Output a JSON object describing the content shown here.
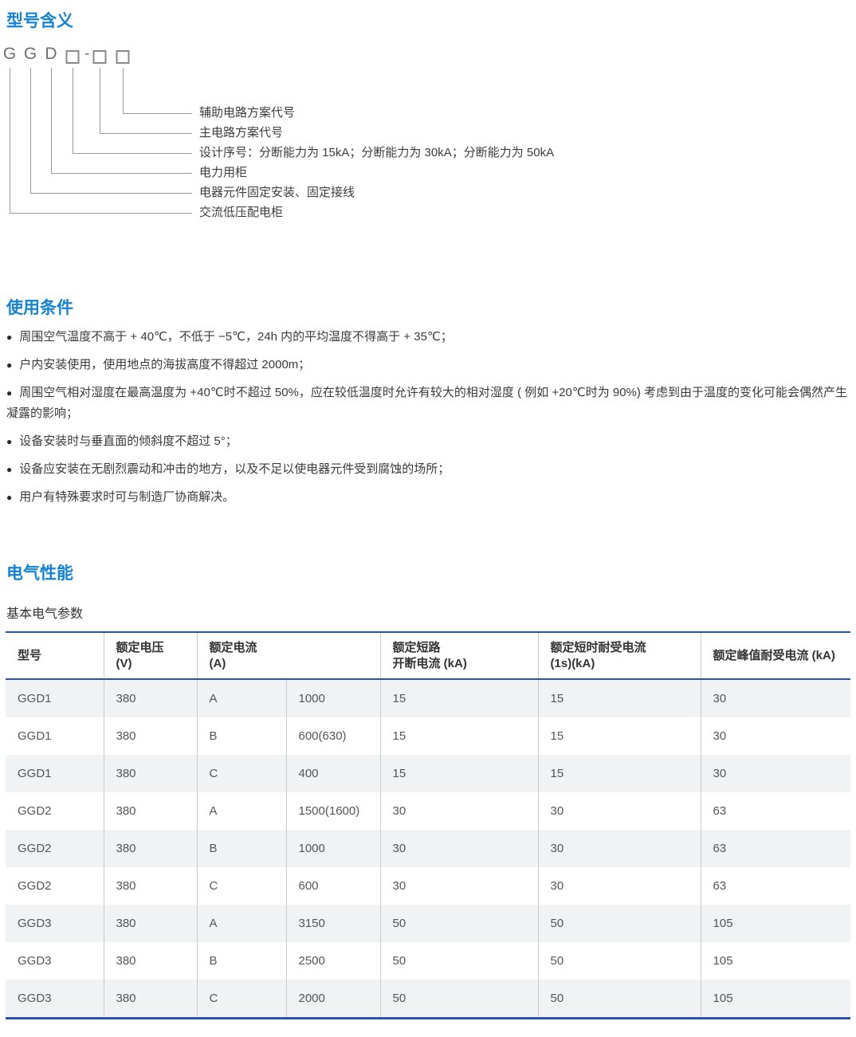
{
  "colors": {
    "heading_blue": "#1483d5",
    "table_border_blue": "#2b55a7",
    "stripe_gray": "#f1f2f4",
    "line_gray": "#9a9a9a"
  },
  "section_model": {
    "title": "型号含义",
    "glyphs": [
      "G",
      "G",
      "D",
      "□",
      "-",
      "□",
      "□"
    ],
    "labels": [
      "辅助电路方案代号",
      "主电路方案代号",
      "设计序号：分断能力为 15kA；分断能力为 30kA；分断能力为 50kA",
      "电力用柜",
      "电器元件固定安装、固定接线",
      "交流低压配电柜"
    ]
  },
  "section_conditions": {
    "title": "使用条件",
    "bullet": "●",
    "items": [
      "周围空气温度不高于 + 40℃，不低于 −5℃，24h 内的平均温度不得高于 + 35℃；",
      "户内安装使用，使用地点的海拔高度不得超过 2000m；",
      "周围空气相对湿度在最高温度为 +40℃时不超过 50%，应在较低温度时允许有较大的相对湿度 ( 例如 +20℃时为 90%) 考虑到由于温度的变化可能会偶然产生凝露的影响；",
      "设备安装时与垂直面的倾斜度不超过 5°；",
      "设备应安装在无剧烈震动和冲击的地方，以及不足以使电器元件受到腐蚀的场所；",
      "用户有特殊要求时可与制造厂协商解决。"
    ]
  },
  "section_electrical": {
    "title": "电气性能",
    "subtitle": "基本电气参数",
    "table": {
      "headers": [
        {
          "lines": [
            "型号"
          ],
          "colspan": 1
        },
        {
          "lines": [
            "额定电压",
            "(V)"
          ],
          "colspan": 1
        },
        {
          "lines": [
            "额定电流",
            "(A)"
          ],
          "colspan": 2
        },
        {
          "lines": [
            "额定短路",
            "开断电流 (kA)"
          ],
          "colspan": 1
        },
        {
          "lines": [
            "额定短时耐受电流",
            "(1s)(kA)"
          ],
          "colspan": 1
        },
        {
          "lines": [
            "额定峰值耐受电流 (kA)"
          ],
          "colspan": 1
        }
      ],
      "rows": [
        [
          "GGD1",
          "380",
          "A",
          "1000",
          "15",
          "15",
          "30"
        ],
        [
          "GGD1",
          "380",
          "B",
          "600(630)",
          "15",
          "15",
          "30"
        ],
        [
          "GGD1",
          "380",
          "C",
          "400",
          "15",
          "15",
          "30"
        ],
        [
          "GGD2",
          "380",
          "A",
          "1500(1600)",
          "30",
          "30",
          "63"
        ],
        [
          "GGD2",
          "380",
          "B",
          "1000",
          "30",
          "30",
          "63"
        ],
        [
          "GGD2",
          "380",
          "C",
          "600",
          "30",
          "30",
          "63"
        ],
        [
          "GGD3",
          "380",
          "A",
          "3150",
          "50",
          "50",
          "105"
        ],
        [
          "GGD3",
          "380",
          "B",
          "2500",
          "50",
          "50",
          "105"
        ],
        [
          "GGD3",
          "380",
          "C",
          "2000",
          "50",
          "50",
          "105"
        ]
      ]
    }
  }
}
